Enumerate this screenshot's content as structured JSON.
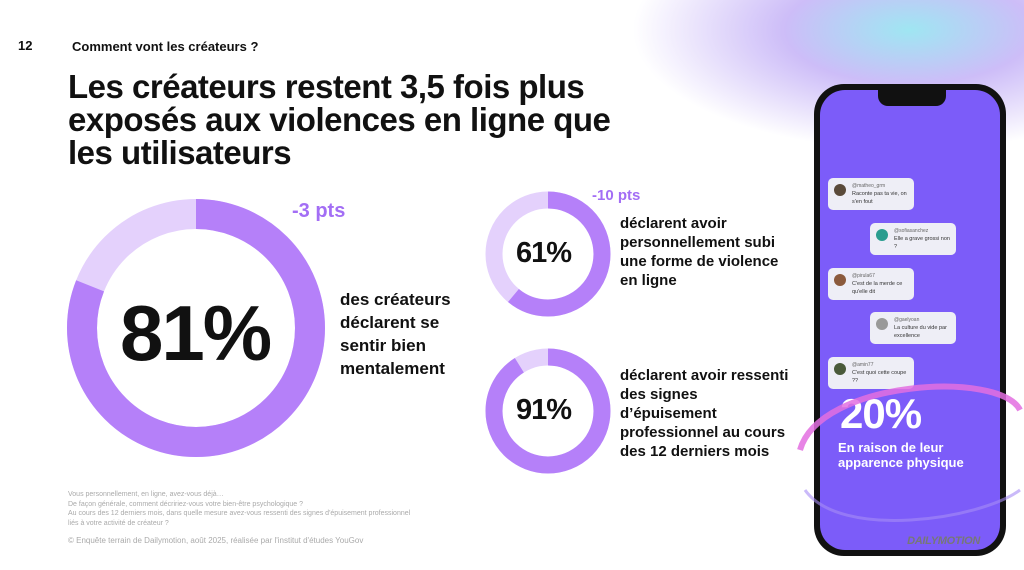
{
  "page_number": "12",
  "section": "Comment vont les créateurs ?",
  "title": "Les créateurs restent 3,5 fois plus exposés aux violences en ligne que les utilisateurs",
  "stats": [
    {
      "value": 81,
      "label": "81%",
      "delta": "-3 pts",
      "text": "des créateurs déclarent se sentir bien mentalement"
    },
    {
      "value": 61,
      "label": "61%",
      "delta": "-10 pts",
      "text": "déclarent avoir personnellement subi une forme de violence en ligne"
    },
    {
      "value": 91,
      "label": "91%",
      "text": "déclarent avoir ressenti des signes d’épuisement professionnel au cours des 12 derniers mois"
    }
  ],
  "colors": {
    "ring": "#b580f9",
    "ring_bg": "#e4d1fc",
    "phone_screen": "#7c5cf9"
  },
  "phone": {
    "messages": [
      {
        "handle": "@matheo_grm",
        "text": "Raconte pas ta vie, on s'en fout"
      },
      {
        "handle": "@sofiasanchez",
        "text": "Elle a grave grossi non ?"
      },
      {
        "handle": "@pirula67",
        "text": "C'est de la merde ce qu'elle dit"
      },
      {
        "handle": "@gaelyoan",
        "text": "La culture du vide par excellence"
      },
      {
        "handle": "@amin77",
        "text": "C'est quoi cette coupe ??"
      }
    ],
    "stat_value": "20%",
    "stat_text": "En raison de leur apparence physique"
  },
  "footnotes": [
    "Vous personnellement, en ligne, avez-vous déjà…",
    "De façon générale, comment décririez-vous votre bien-être psychologique ?",
    "Au cours des 12 derniers mois, dans quelle mesure avez-vous ressenti des signes d'épuisement professionnel",
    "liés à votre activité de créateur ?"
  ],
  "source": "© Enquête terrain de Dailymotion, août 2025, réalisée par l'institut d'études YouGov",
  "logo": "DAILYMOTION"
}
